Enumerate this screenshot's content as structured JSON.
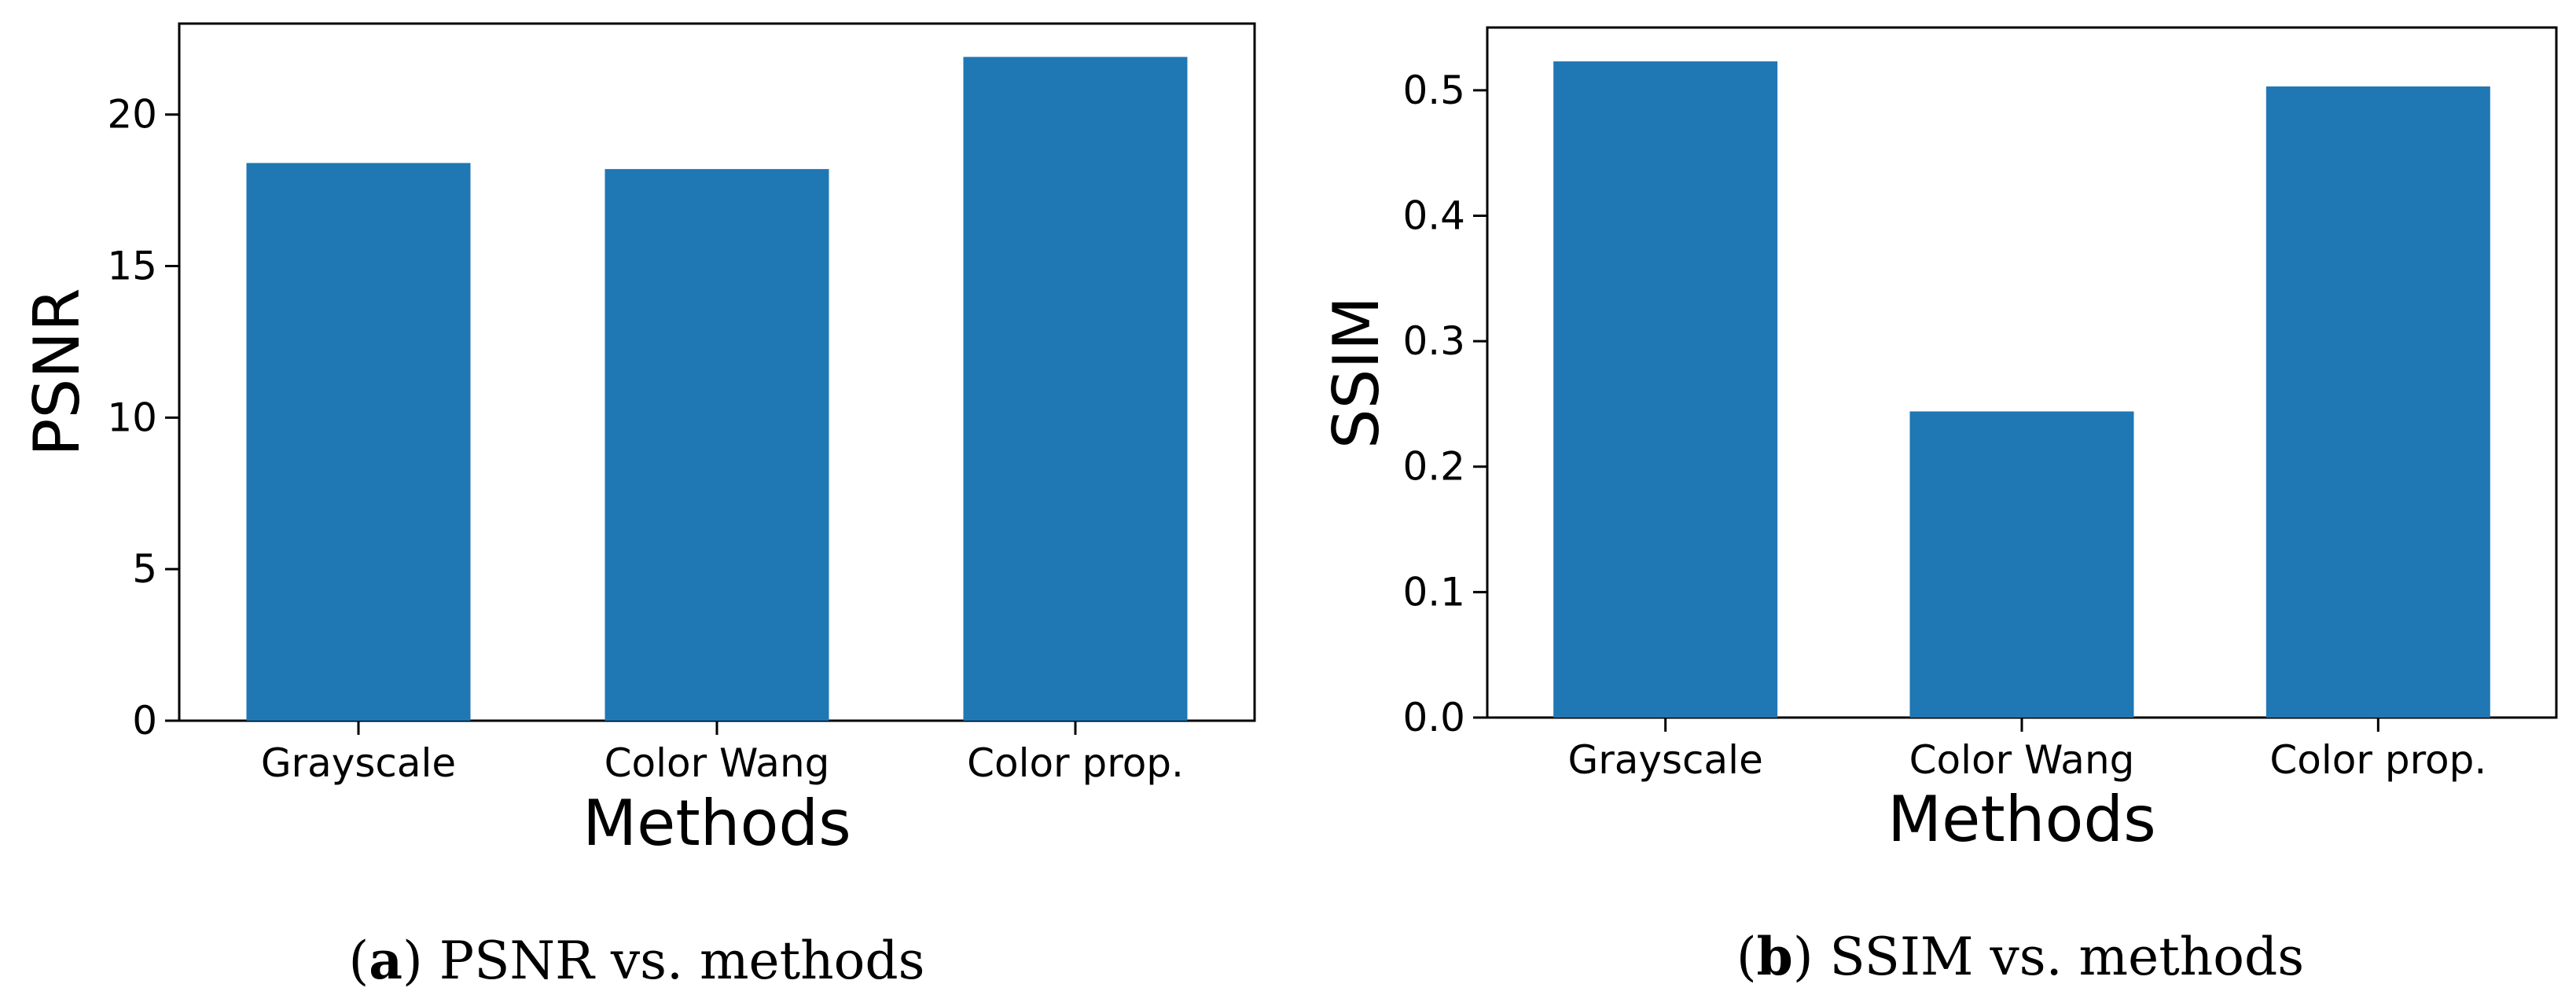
{
  "chart_data": [
    {
      "type": "bar",
      "categories": [
        "Grayscale",
        "Color Wang",
        "Color prop."
      ],
      "values": [
        18.4,
        18.2,
        21.9
      ],
      "xlabel": "Methods",
      "ylabel": "PSNR",
      "ylim": [
        0,
        23
      ],
      "yticks": [
        0,
        5,
        10,
        15,
        20
      ],
      "ytick_labels": [
        "0",
        "5",
        "10",
        "15",
        "20"
      ],
      "caption_letter": "a",
      "caption_text": "PSNR vs. methods",
      "bar_color": "#1f77b4"
    },
    {
      "type": "bar",
      "categories": [
        "Grayscale",
        "Color Wang",
        "Color prop."
      ],
      "values": [
        0.523,
        0.244,
        0.503
      ],
      "xlabel": "Methods",
      "ylabel": "SSIM",
      "ylim": [
        0,
        0.55
      ],
      "yticks": [
        0.0,
        0.1,
        0.2,
        0.3,
        0.4,
        0.5
      ],
      "ytick_labels": [
        "0.0",
        "0.1",
        "0.2",
        "0.3",
        "0.4",
        "0.5"
      ],
      "caption_letter": "b",
      "caption_text": "SSIM vs. methods",
      "bar_color": "#1f77b4"
    }
  ]
}
